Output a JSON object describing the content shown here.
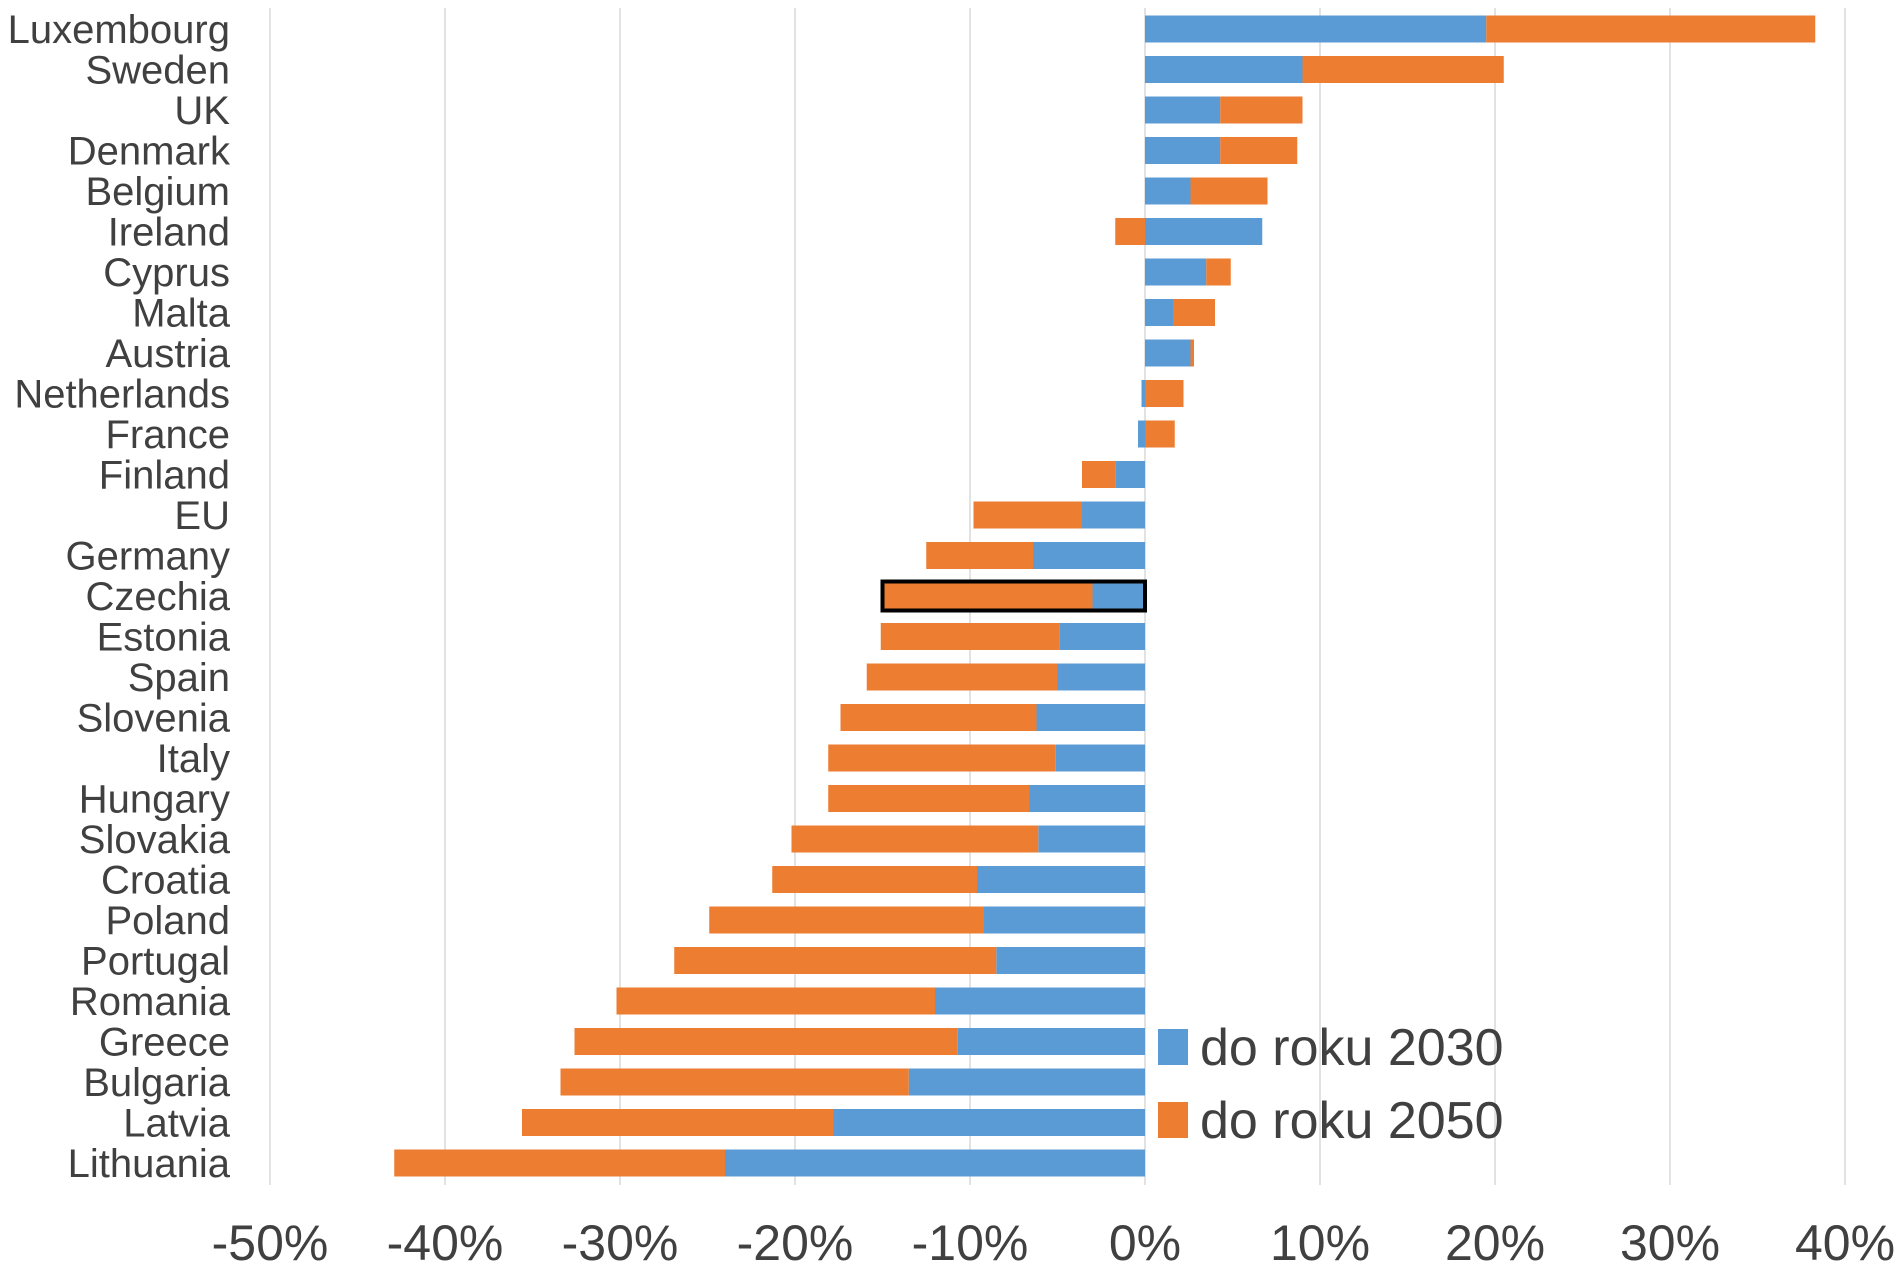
{
  "chart_data": {
    "type": "bar",
    "orientation": "horizontal",
    "stacked": true,
    "categories": [
      "Luxembourg",
      "Sweden",
      "UK",
      "Denmark",
      "Belgium",
      "Ireland",
      "Cyprus",
      "Malta",
      "Austria",
      "Netherlands",
      "France",
      "Finland",
      "EU",
      "Germany",
      "Czechia",
      "Estonia",
      "Spain",
      "Slovenia",
      "Italy",
      "Hungary",
      "Slovakia",
      "Croatia",
      "Poland",
      "Portugal",
      "Romania",
      "Greece",
      "Bulgaria",
      "Latvia",
      "Lithuania"
    ],
    "series": [
      {
        "name": "do roku 2030",
        "color": "#5b9bd5",
        "values": [
          19.5,
          9.0,
          4.3,
          4.3,
          2.6,
          6.7,
          3.5,
          1.6,
          2.6,
          -0.2,
          -0.4,
          -1.7,
          -3.6,
          -6.4,
          -3.0,
          -4.9,
          -5.0,
          -6.2,
          -5.1,
          -6.6,
          -6.1,
          -9.6,
          -9.2,
          -8.5,
          -12.0,
          -10.7,
          -13.5,
          -17.8,
          -24.0
        ]
      },
      {
        "name": "do roku 2050",
        "color": "#ed7d31",
        "values": [
          18.8,
          11.5,
          4.7,
          4.4,
          4.4,
          -1.7,
          1.4,
          2.4,
          0.2,
          2.2,
          1.7,
          -1.9,
          -6.2,
          -6.1,
          -12.0,
          -10.2,
          -10.9,
          -11.2,
          -13.0,
          -11.5,
          -14.1,
          -11.7,
          -15.7,
          -18.4,
          -18.2,
          -21.9,
          -19.9,
          -17.8,
          -18.9
        ]
      }
    ],
    "highlight": "Czechia",
    "xlim": [
      -50,
      40
    ],
    "xticks": [
      -50,
      -40,
      -30,
      -20,
      -10,
      0,
      10,
      20,
      30,
      40
    ],
    "xtick_labels": [
      "-50%",
      "-40%",
      "-30%",
      "-20%",
      "-10%",
      "0%",
      "10%",
      "20%",
      "30%",
      "40%"
    ],
    "grid": "vertical",
    "legend_position": "bottom-right-inside",
    "legend": [
      "do roku 2030",
      "do roku 2050"
    ]
  }
}
